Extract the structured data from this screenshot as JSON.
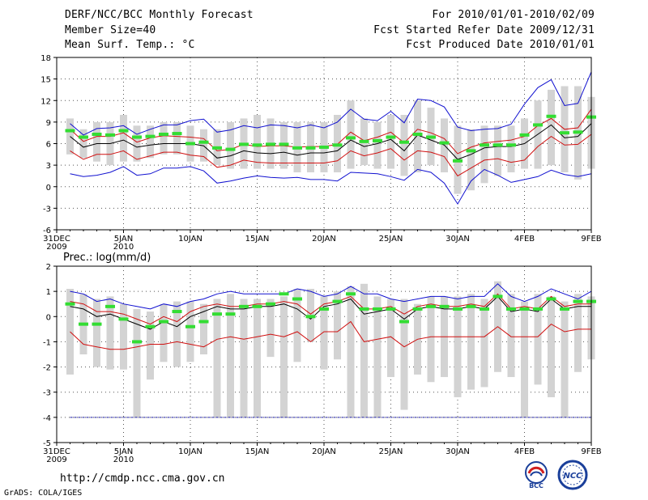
{
  "header": {
    "title": "DERF/NCC/BCC Monthly Forecast",
    "member": "Member Size=40",
    "variable": "Mean Surf. Temp.: °C",
    "period": "For 2010/01/01-2010/02/09",
    "fcst_start": "Fcst Started Refer Date 2009/12/31",
    "fcst_produced": "Fcst Produced Date 2010/01/01"
  },
  "footer": {
    "url": "http://cmdp.ncc.cma.gov.cn",
    "credit": "GrADS: COLA/IGES",
    "logo_left_text": "BCC",
    "logo_right_text": "NCC"
  },
  "chart_data": [
    {
      "type": "line",
      "title": "Mean Surf. Temp.: °C",
      "x_ticks": [
        {
          "day": 0,
          "label": "31DEC",
          "sub": "2009"
        },
        {
          "day": 5,
          "label": "5JAN",
          "sub": "2010"
        },
        {
          "day": 10,
          "label": "10JAN",
          "sub": ""
        },
        {
          "day": 15,
          "label": "15JAN",
          "sub": ""
        },
        {
          "day": 20,
          "label": "20JAN",
          "sub": ""
        },
        {
          "day": 25,
          "label": "25JAN",
          "sub": ""
        },
        {
          "day": 30,
          "label": "30JAN",
          "sub": ""
        },
        {
          "day": 35,
          "label": "4FEB",
          "sub": ""
        },
        {
          "day": 40,
          "label": "9FEB",
          "sub": ""
        }
      ],
      "xlim": [
        0,
        40
      ],
      "ylim": [
        -6,
        18
      ],
      "y_ticks": [
        -6,
        -3,
        0,
        3,
        6,
        9,
        12,
        15,
        18
      ],
      "x_grid_days": [
        0,
        5,
        10,
        15,
        20,
        25,
        30,
        35,
        40
      ],
      "days": [
        1,
        2,
        3,
        4,
        5,
        6,
        7,
        8,
        9,
        10,
        11,
        12,
        13,
        14,
        15,
        16,
        17,
        18,
        19,
        20,
        21,
        22,
        23,
        24,
        25,
        26,
        27,
        28,
        29,
        30,
        31,
        32,
        33,
        34,
        35,
        36,
        37,
        38,
        39,
        40
      ],
      "box_low": [
        4.5,
        4,
        3.5,
        3,
        3.5,
        3.5,
        4,
        4.5,
        4.5,
        3.5,
        3.5,
        3,
        2.5,
        2.5,
        2.5,
        2.5,
        2.5,
        2,
        2,
        2,
        2,
        2.5,
        3,
        2.5,
        2.5,
        1.5,
        2,
        3,
        2,
        -1,
        -0.5,
        0.5,
        1.5,
        2,
        2.5,
        2.5,
        3,
        2,
        1,
        2.5
      ],
      "box_high": [
        9.5,
        8,
        9,
        9,
        10,
        8.5,
        8.5,
        9,
        9,
        8.5,
        8,
        8,
        9,
        9.5,
        10,
        9.5,
        9,
        9,
        9,
        9,
        10,
        12,
        9.5,
        9,
        10,
        10,
        12,
        11,
        9.5,
        8.5,
        8,
        8.5,
        8.5,
        8.5,
        9.5,
        12,
        13.5,
        14,
        14,
        12.5
      ],
      "ens_max": [
        1.8,
        1.4,
        1.6,
        2,
        2.8,
        1.6,
        1.8,
        2.6,
        2.6,
        2.8,
        2.2,
        0.5,
        0.8,
        1.2,
        1.5,
        1.3,
        1.2,
        1.3,
        1,
        1,
        0.8,
        2,
        1.9,
        1.8,
        1.4,
        0.9,
        2.4,
        2,
        0.5,
        -2.4,
        0.8,
        2.4,
        1.6,
        0.6,
        1,
        1.4,
        2.3,
        1.7,
        1.4,
        1.8
      ],
      "ens_top": [
        8.8,
        7.2,
        8.1,
        8.2,
        8.5,
        7.3,
        8,
        8.6,
        8.6,
        9.2,
        9.4,
        7.6,
        7.9,
        8.5,
        8.2,
        8.6,
        8.5,
        8.2,
        8.6,
        8.2,
        9,
        10.8,
        9.4,
        9.2,
        10.5,
        8.9,
        12.2,
        12,
        11.1,
        8.3,
        7.8,
        8,
        8.1,
        8.7,
        11.5,
        13.8,
        14.9,
        11.3,
        11.6,
        16
      ],
      "mean": [
        7,
        5.5,
        6,
        6,
        6.5,
        5.5,
        5.8,
        6,
        6,
        6,
        5.7,
        4,
        4.3,
        5,
        4.7,
        4.6,
        4.8,
        4.4,
        4.7,
        4.7,
        5,
        6.5,
        5.6,
        6,
        6.6,
        5,
        7.2,
        6.5,
        5.8,
        3.8,
        4.5,
        5.4,
        5.6,
        5.6,
        6,
        7.3,
        8.6,
        6.8,
        7,
        8.8
      ],
      "upper": [
        8,
        6.3,
        7,
        7,
        7.5,
        6.2,
        6.8,
        7.1,
        7,
        6.9,
        6.7,
        5,
        5.2,
        5.9,
        5.6,
        5.7,
        5.7,
        5.5,
        5.6,
        5.6,
        5.9,
        7.6,
        6.4,
        6.9,
        7.6,
        6.1,
        8,
        7.5,
        6.7,
        4.6,
        5.5,
        6.1,
        6.3,
        6.5,
        7,
        8.5,
        9.5,
        8,
        8.2,
        10.8
      ],
      "lower": [
        5,
        3.8,
        4.5,
        4.5,
        5,
        3.8,
        4.3,
        4.8,
        4.8,
        4.4,
        4.2,
        2.7,
        3,
        3.7,
        3.4,
        3.3,
        3.3,
        3.3,
        3.3,
        3.3,
        3.6,
        5,
        4.3,
        4.7,
        5.3,
        3.7,
        5,
        4.8,
        4.2,
        1.5,
        2.6,
        3.7,
        3.9,
        3.4,
        3.7,
        5.6,
        7,
        5.8,
        5.9,
        7.3
      ],
      "green": [
        7.8,
        6.9,
        7.3,
        7.2,
        7.8,
        6.9,
        7,
        7.3,
        7.4,
        6,
        6.2,
        5.4,
        5.2,
        5.9,
        5.8,
        5.9,
        5.9,
        5.4,
        5.4,
        5.5,
        5.8,
        6.8,
        6.3,
        6.4,
        6.9,
        6.2,
        7.3,
        6.9,
        6.1,
        3.6,
        5,
        5.8,
        5.8,
        5.8,
        7.2,
        8.6,
        9.8,
        7.5,
        7.6,
        9.7
      ]
    },
    {
      "type": "line",
      "title": "Prec.: log(mm/d)",
      "x_ticks": [
        {
          "day": 0,
          "label": "31DEC",
          "sub": "2009"
        },
        {
          "day": 5,
          "label": "5JAN",
          "sub": "2010"
        },
        {
          "day": 10,
          "label": "10JAN",
          "sub": ""
        },
        {
          "day": 15,
          "label": "15JAN",
          "sub": ""
        },
        {
          "day": 20,
          "label": "20JAN",
          "sub": ""
        },
        {
          "day": 25,
          "label": "25JAN",
          "sub": ""
        },
        {
          "day": 30,
          "label": "30JAN",
          "sub": ""
        },
        {
          "day": 35,
          "label": "4FEB",
          "sub": ""
        },
        {
          "day": 40,
          "label": "9FEB",
          "sub": ""
        }
      ],
      "xlim": [
        0,
        40
      ],
      "ylim": [
        -5,
        2
      ],
      "y_ticks": [
        -5,
        -4,
        -3,
        -2,
        -1,
        0,
        1,
        2
      ],
      "x_grid_days": [
        0,
        5,
        10,
        15,
        20,
        25,
        30,
        35,
        40
      ],
      "baseline": -4,
      "days": [
        1,
        2,
        3,
        4,
        5,
        6,
        7,
        8,
        9,
        10,
        11,
        12,
        13,
        14,
        15,
        16,
        17,
        18,
        19,
        20,
        21,
        22,
        23,
        24,
        25,
        26,
        27,
        28,
        29,
        30,
        31,
        32,
        33,
        34,
        35,
        36,
        37,
        38,
        39,
        40
      ],
      "box_low": [
        -2.3,
        -1.5,
        -2,
        -2.1,
        -2.1,
        -4,
        -2.5,
        -1.8,
        -2,
        -1.8,
        -1.5,
        -4,
        -4,
        -4,
        -4,
        -1.6,
        -4,
        -1.8,
        -1,
        -2.1,
        -1.7,
        -4,
        -4,
        -4,
        -2.4,
        -3.7,
        -2.3,
        -2.6,
        -2.4,
        -3.2,
        -2.9,
        -2.8,
        -2.2,
        -2.4,
        -4,
        -2.7,
        -3.2,
        -4,
        -2.2,
        -1.7
      ],
      "box_high": [
        1.1,
        0.9,
        0.7,
        0.8,
        0.5,
        0.3,
        0.2,
        0.5,
        0.6,
        0.6,
        0.5,
        0.7,
        0.9,
        0.7,
        0.7,
        0.7,
        0.8,
        1.1,
        1.1,
        0.8,
        1,
        1.2,
        1.3,
        0.8,
        0.7,
        0.7,
        0.5,
        0.8,
        0.8,
        0.8,
        0.9,
        0.7,
        1.4,
        0.9,
        0.6,
        0.9,
        0.8,
        0.6,
        0.9,
        0.8
      ],
      "ens_max": [
        1,
        0.9,
        0.6,
        0.7,
        0.5,
        0.4,
        0.3,
        0.5,
        0.4,
        0.6,
        0.7,
        0.9,
        1,
        0.9,
        0.9,
        0.9,
        0.9,
        1.1,
        1,
        0.8,
        0.9,
        1.2,
        0.9,
        0.9,
        0.7,
        0.6,
        0.7,
        0.8,
        0.8,
        0.7,
        0.8,
        0.8,
        1.3,
        0.8,
        0.6,
        0.8,
        1.1,
        0.9,
        0.7,
        1
      ],
      "mean": [
        0.4,
        0.3,
        0,
        0.1,
        -0.1,
        -0.3,
        -0.5,
        -0.2,
        -0.4,
        0,
        0.2,
        0.4,
        0.3,
        0.3,
        0.4,
        0.4,
        0.5,
        0.3,
        -0.1,
        0.4,
        0.5,
        0.7,
        0.1,
        0.2,
        0.3,
        -0.1,
        0.3,
        0.4,
        0.3,
        0.3,
        0.4,
        0.3,
        0.8,
        0.2,
        0.3,
        0.2,
        0.7,
        0.3,
        0.4,
        0.4
      ],
      "upper": [
        0.6,
        0.5,
        0.2,
        0.2,
        0.1,
        -0.1,
        -0.3,
        0,
        -0.2,
        0.2,
        0.4,
        0.5,
        0.4,
        0.4,
        0.5,
        0.5,
        0.6,
        0.5,
        0.1,
        0.5,
        0.6,
        0.8,
        0.3,
        0.3,
        0.4,
        0.1,
        0.4,
        0.5,
        0.4,
        0.4,
        0.5,
        0.4,
        0.9,
        0.3,
        0.4,
        0.3,
        0.8,
        0.4,
        0.5,
        0.5
      ],
      "lower": [
        -0.6,
        -1.1,
        -1.2,
        -1.3,
        -1.3,
        -1.2,
        -1.1,
        -1.1,
        -1,
        -1.1,
        -1.2,
        -0.9,
        -0.8,
        -0.9,
        -0.8,
        -0.7,
        -0.8,
        -0.6,
        -1,
        -0.6,
        -0.6,
        -0.2,
        -1,
        -0.9,
        -0.8,
        -1.2,
        -0.9,
        -0.8,
        -0.8,
        -0.8,
        -0.8,
        -0.8,
        -0.4,
        -0.8,
        -0.8,
        -0.8,
        -0.3,
        -0.6,
        -0.5,
        -0.5
      ],
      "green": [
        0.5,
        -0.3,
        -0.3,
        0.4,
        -0.1,
        -1,
        -0.4,
        -0.2,
        0.2,
        -0.4,
        -0.2,
        0.1,
        0.1,
        0.4,
        0.4,
        0.5,
        0.9,
        0.7,
        0,
        0.3,
        0.6,
        0.9,
        0.3,
        0.3,
        0.3,
        -0.2,
        0.3,
        0.4,
        0.4,
        0.3,
        0.4,
        0.3,
        0.8,
        0.3,
        0.3,
        0.3,
        0.7,
        0.3,
        0.6,
        0.6
      ]
    }
  ]
}
